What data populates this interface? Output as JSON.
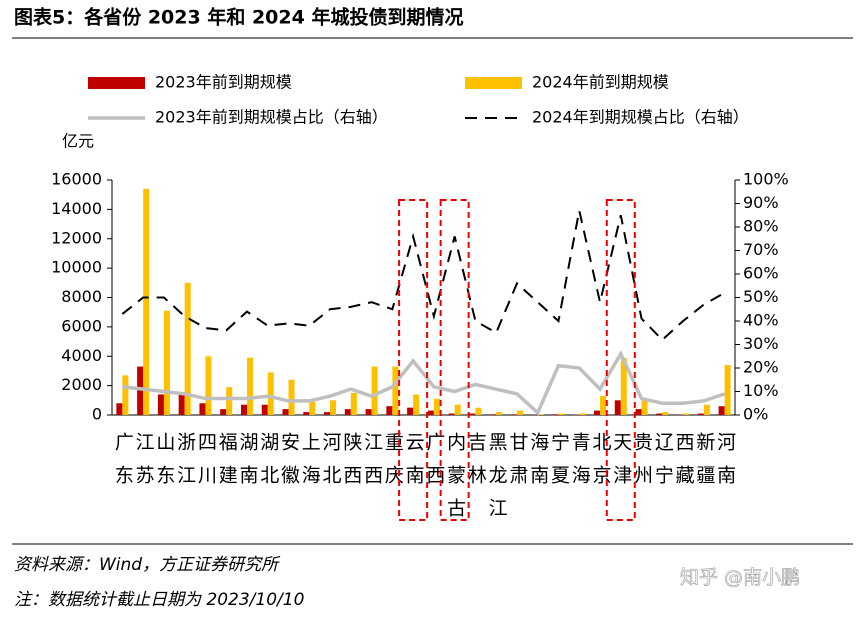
{
  "chart_data": {
    "type": "bar",
    "title": "图表5：各省份 2023 年和 2024 年城投债到期情况",
    "y_label": "亿元",
    "source": "资料来源：Wind，方正证券研究所",
    "note": "注：数据统计截止日期为 2023/10/10",
    "watermark": "知乎 @南小鹏",
    "categories": [
      "广东",
      "江苏",
      "山东",
      "浙江",
      "四川",
      "福建",
      "湖南",
      "湖北",
      "安徽",
      "上海",
      "河北",
      "陕西",
      "江西",
      "重庆",
      "云南",
      "广西",
      "内蒙古",
      "吉林",
      "黑龙江",
      "甘肃",
      "海南",
      "宁夏",
      "青海",
      "北京",
      "天津",
      "贵州",
      "辽宁",
      "西藏",
      "新疆",
      "河南"
    ],
    "series": [
      {
        "name": "2023年前到期规模",
        "type": "bar",
        "color": "#c00000",
        "values": [
          800,
          3300,
          1400,
          1500,
          800,
          400,
          700,
          700,
          400,
          200,
          200,
          400,
          400,
          600,
          500,
          300,
          100,
          100,
          50,
          50,
          20,
          50,
          30,
          300,
          1000,
          400,
          100,
          20,
          100,
          600
        ]
      },
      {
        "name": "2024年前到期规模",
        "type": "bar",
        "color": "#ffc000",
        "values": [
          2700,
          15400,
          7100,
          9000,
          4000,
          1900,
          3900,
          2900,
          2400,
          900,
          1000,
          1500,
          3300,
          3300,
          1400,
          1100,
          700,
          500,
          200,
          300,
          50,
          100,
          100,
          1300,
          3900,
          1000,
          200,
          100,
          700,
          3400
        ]
      },
      {
        "name": "2023年前到期规模占比（右轴）",
        "type": "line",
        "axis": "y2",
        "color": "#bfbfbf",
        "values": [
          12,
          11,
          10,
          9,
          7,
          7,
          7,
          8,
          6,
          6,
          8,
          11,
          8,
          12,
          23,
          12,
          10,
          13,
          11,
          9,
          1,
          21,
          20,
          11,
          26,
          7,
          5,
          5,
          6,
          9
        ]
      },
      {
        "name": "2024年到期规模占比（右轴）",
        "type": "line",
        "axis": "y2",
        "color": "#000000",
        "dashed": true,
        "values": [
          43,
          50,
          50,
          42,
          37,
          36,
          44,
          38,
          39,
          38,
          45,
          46,
          48,
          45,
          76,
          42,
          76,
          40,
          35,
          56,
          48,
          40,
          87,
          48,
          85,
          41,
          32,
          40,
          47,
          52
        ]
      }
    ],
    "ylim": [
      0,
      16000
    ],
    "yticks": [
      0,
      2000,
      4000,
      6000,
      8000,
      10000,
      12000,
      14000,
      16000
    ],
    "y2lim": [
      0,
      100
    ],
    "y2ticks": [
      {
        "value": 0,
        "label": "0%"
      },
      {
        "value": 10,
        "label": "10%"
      },
      {
        "value": 20,
        "label": "20%"
      },
      {
        "value": 30,
        "label": "30%"
      },
      {
        "value": 40,
        "label": "40%"
      },
      {
        "value": 50,
        "label": "50%"
      },
      {
        "value": 60,
        "label": "60%"
      },
      {
        "value": 70,
        "label": "70%"
      },
      {
        "value": 80,
        "label": "80%"
      },
      {
        "value": 90,
        "label": "90%"
      },
      {
        "value": 100,
        "label": "100%"
      }
    ],
    "grid": false
  }
}
